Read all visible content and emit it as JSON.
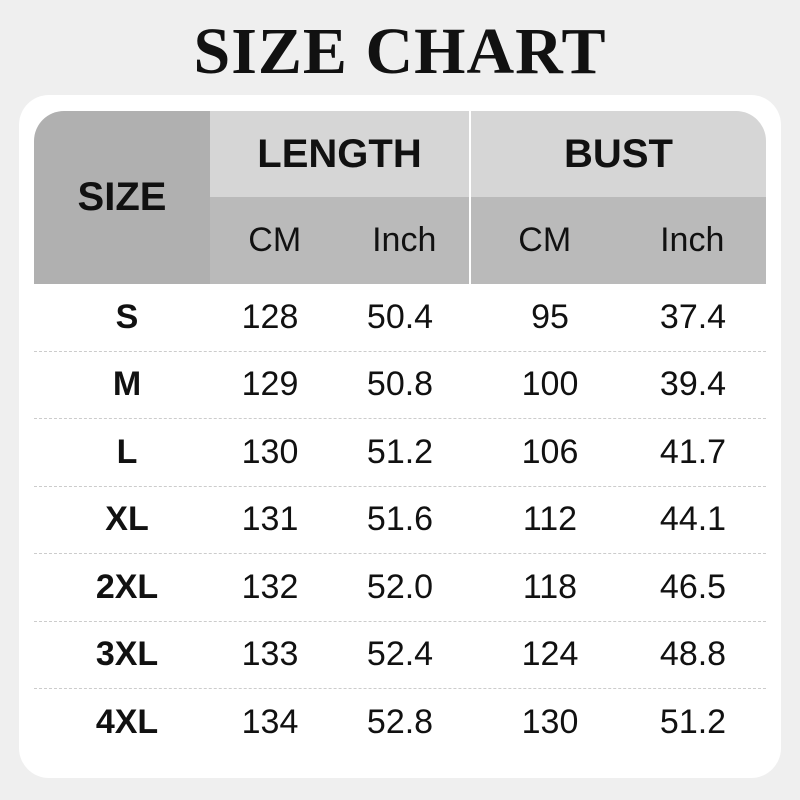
{
  "title": "SIZE CHART",
  "headers": {
    "size": "SIZE",
    "length": "LENGTH",
    "bust": "BUST",
    "cm": "CM",
    "inch": "Inch"
  },
  "rows": [
    [
      "S",
      "128",
      "50.4",
      "95",
      "37.4"
    ],
    [
      "M",
      "129",
      "50.8",
      "100",
      "39.4"
    ],
    [
      "L",
      "130",
      "51.2",
      "106",
      "41.7"
    ],
    [
      "XL",
      "131",
      "51.6",
      "112",
      "44.1"
    ],
    [
      "2XL",
      "132",
      "52.0",
      "118",
      "46.5"
    ],
    [
      "3XL",
      "133",
      "52.4",
      "124",
      "48.8"
    ],
    [
      "4XL",
      "134",
      "52.8",
      "130",
      "51.2"
    ]
  ]
}
